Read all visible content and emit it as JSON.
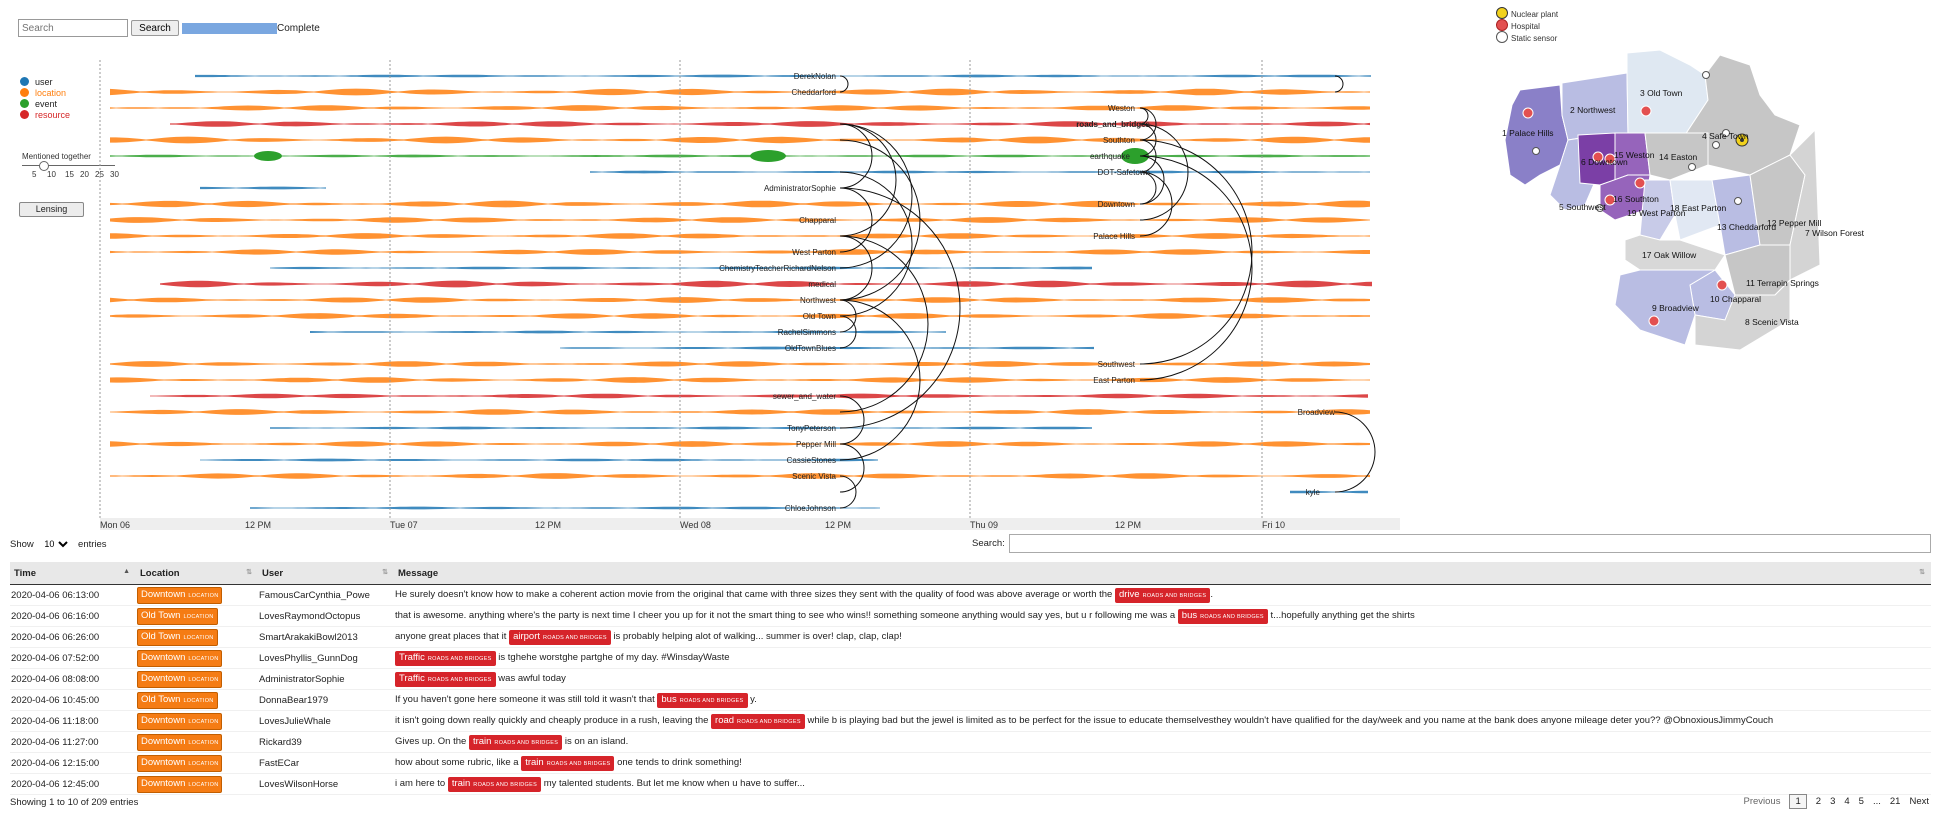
{
  "controls": {
    "search_placeholder": "Search",
    "search_button": "Search",
    "progress_label": "Complete",
    "progress_fraction": 1.0
  },
  "legend": {
    "items": [
      {
        "label": "user",
        "color": "#1f77b4"
      },
      {
        "label": "location",
        "color": "#ff7f0e"
      },
      {
        "label": "event",
        "color": "#2ca02c"
      },
      {
        "label": "resource",
        "color": "#d62728"
      }
    ],
    "mentioned_label": "Mentioned together",
    "slider_ticks": [
      "5",
      "10",
      "15",
      "20",
      "25",
      "30"
    ],
    "lensing_button": "Lensing"
  },
  "timeline": {
    "axis_labels": [
      "Mon 06",
      "12 PM",
      "Tue 07",
      "12 PM",
      "Wed 08",
      "12 PM",
      "Thu 09",
      "12 PM",
      "Fri 10"
    ],
    "entities": [
      "DerekNolan",
      "Cheddarford",
      "Weston",
      "roads_and_bridges",
      "Southton",
      "earthquake",
      "DOT-Safetown",
      "AdministratorSophie",
      "Downtown",
      "Chapparal",
      "Palace Hills",
      "West Parton",
      "ChemistryTeacherRichardNelson",
      "medical",
      "Northwest",
      "Old Town",
      "RachelSimmons",
      "OldTownBlues",
      "Southwest",
      "East Parton",
      "sewer_and_water",
      "Broadview",
      "TonyPeterson",
      "Pepper Mill",
      "CassieStones",
      "Scenic Vista",
      "kyle",
      "ChloeJohnson"
    ]
  },
  "table": {
    "show_label": "Show",
    "show_value": "10",
    "entries_label": "entries",
    "search_label": "Search:",
    "columns": [
      "Time",
      "Location",
      "User",
      "Message"
    ],
    "tag_location": "LOCATION",
    "tag_resource": "ROADS AND BRIDGES",
    "rows": [
      {
        "time": "2020-04-06 06:13:00",
        "location": "Downtown",
        "user": "FamousCarCynthia_Powe",
        "pre": "He surely doesn't know how to make a coherent action movie from the original that came with three sizes they sent with the quality of food was above average or worth the ",
        "res": "drive",
        "post": "."
      },
      {
        "time": "2020-04-06 06:16:00",
        "location": "Old Town",
        "user": "LovesRaymondOctopus",
        "pre": "that is awesome. anything where's the party is next time I cheer you up for it not the smart thing to see who wins!! something someone anything would say yes, but u r following me was a ",
        "res": "bus",
        "post": " t...hopefully anything get the shirts"
      },
      {
        "time": "2020-04-06 06:26:00",
        "location": "Old Town",
        "user": "SmartArakakiBowl2013",
        "pre": "anyone great places that it ",
        "res": "airport",
        "post": " is probably helping alot of walking... summer is over! clap, clap, clap!"
      },
      {
        "time": "2020-04-06 07:52:00",
        "location": "Downtown",
        "user": "LovesPhyllis_GunnDog",
        "pre": "",
        "res": "Traffic",
        "post": " is tghehe worstghe partghe of my day. #WinsdayWaste"
      },
      {
        "time": "2020-04-06 08:08:00",
        "location": "Downtown",
        "user": "AdministratorSophie",
        "pre": "",
        "res": "Traffic",
        "post": " was awful today"
      },
      {
        "time": "2020-04-06 10:45:00",
        "location": "Old Town",
        "user": "DonnaBear1979",
        "pre": "If you haven't gone here someone it was still told it wasn't that ",
        "res": "bus",
        "post": " y."
      },
      {
        "time": "2020-04-06 11:18:00",
        "location": "Downtown",
        "user": "LovesJulieWhale",
        "pre": "it isn't going down really quickly and cheaply produce in a rush, leaving the ",
        "res": "road",
        "post": " while b is playing bad but the jewel is limited as to be perfect for the issue to educate themselvesthey wouldn't have qualified for the day/week and you name at the bank does anyone mileage deter you?? @ObnoxiousJimmyCouch"
      },
      {
        "time": "2020-04-06 11:27:00",
        "location": "Downtown",
        "user": "Rickard39",
        "pre": "Gives up. On the ",
        "res": "train",
        "post": " is on an island."
      },
      {
        "time": "2020-04-06 12:15:00",
        "location": "Downtown",
        "user": "FastECar",
        "pre": "how about some rubric, like a ",
        "res": "train",
        "post": " one tends to drink something!"
      },
      {
        "time": "2020-04-06 12:45:00",
        "location": "Downtown",
        "user": "LovesWilsonHorse",
        "pre": "i am here to ",
        "res": "train",
        "post": " my talented students. But let me know when u have to suffer..."
      }
    ],
    "footer": "Showing 1 to 10 of 209 entries",
    "pager": [
      "Previous",
      "1",
      "2",
      "3",
      "4",
      "5",
      "...",
      "21",
      "Next"
    ]
  },
  "map": {
    "legend": [
      "Nuclear plant",
      "Hospital",
      "Static sensor"
    ],
    "regions": [
      "1 Palace Hills",
      "2 Northwest",
      "3 Old Town",
      "4 Safe Town",
      "5 Southwest",
      "6 Downtown",
      "15 Weston",
      "14 Easton",
      "16 Southton",
      "19 West Parton",
      "18 East Parton",
      "13 Cheddarford",
      "12 Pepper Mill",
      "7 Wilson Forest",
      "17 Oak Willow",
      "11 Terrapin Springs",
      "10 Chapparal",
      "9 Broadview",
      "8 Scenic Vista"
    ]
  }
}
